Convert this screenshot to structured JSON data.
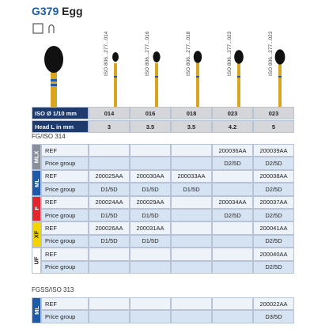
{
  "header": {
    "code": "G379",
    "name": "Egg"
  },
  "burs": [
    {
      "label": "ISO 806...277...014"
    },
    {
      "label": "ISO 806...277...016"
    },
    {
      "label": "ISO 806...277...018"
    },
    {
      "label": "ISO 806...277...023"
    },
    {
      "label": "ISO 806...277...023"
    }
  ],
  "table": {
    "rows": [
      {
        "label": "ISO Ø 1/10 mm",
        "values": [
          "014",
          "016",
          "018",
          "023",
          "023"
        ]
      },
      {
        "label": "Head L in mm",
        "values": [
          "3",
          "3.5",
          "3.5",
          "4.2",
          "5"
        ]
      }
    ],
    "sections": [
      {
        "title": "FG/ISO 314",
        "groups": [
          {
            "grit": "MLX",
            "color": "#8a8f99",
            "text_color": "#ffffff",
            "rows": [
              {
                "label": "REF",
                "values": [
                  null,
                  null,
                  null,
                  "200036AA",
                  "200039AA"
                ]
              },
              {
                "label": "Price group",
                "values": [
                  null,
                  null,
                  null,
                  "D2/5D",
                  "D2/5D"
                ]
              }
            ]
          },
          {
            "grit": "ML",
            "color": "#1e5aa8",
            "text_color": "#ffffff",
            "rows": [
              {
                "label": "REF",
                "values": [
                  "200025AA",
                  "200030AA",
                  "200033AA",
                  null,
                  "200038AA"
                ]
              },
              {
                "label": "Price group",
                "values": [
                  "D1/5D",
                  "D1/5D",
                  "D1/5D",
                  null,
                  "D2/5D"
                ]
              }
            ]
          },
          {
            "grit": "F",
            "color": "#e3262b",
            "text_color": "#ffffff",
            "rows": [
              {
                "label": "REF",
                "values": [
                  "200024AA",
                  "200029AA",
                  null,
                  "200034AA",
                  "200037AA"
                ]
              },
              {
                "label": "Price group",
                "values": [
                  "D1/5D",
                  "D1/5D",
                  null,
                  "D2/5D",
                  "D2/5D"
                ]
              }
            ]
          },
          {
            "grit": "XF",
            "color": "#f2d400",
            "text_color": "#1a1a1a",
            "rows": [
              {
                "label": "REF",
                "values": [
                  "200026AA",
                  "200031AA",
                  null,
                  null,
                  "200041AA"
                ]
              },
              {
                "label": "Price group",
                "values": [
                  "D1/5D",
                  "D1/5D",
                  null,
                  null,
                  "D2/5D"
                ]
              }
            ]
          },
          {
            "grit": "UF",
            "color": "#ffffff",
            "text_color": "#1a1a1a",
            "rows": [
              {
                "label": "REF",
                "values": [
                  null,
                  null,
                  null,
                  null,
                  "200040AA"
                ]
              },
              {
                "label": "Price group",
                "values": [
                  null,
                  null,
                  null,
                  null,
                  "D2/5D"
                ]
              }
            ]
          }
        ]
      },
      {
        "title": "FGSS/ISO 313",
        "groups": [
          {
            "grit": "ML",
            "color": "#1e5aa8",
            "text_color": "#ffffff",
            "rows": [
              {
                "label": "REF",
                "values": [
                  null,
                  null,
                  null,
                  null,
                  "200022AA"
                ]
              },
              {
                "label": "Price group",
                "values": [
                  null,
                  null,
                  null,
                  null,
                  "D3/5D"
                ]
              }
            ]
          }
        ]
      }
    ]
  }
}
